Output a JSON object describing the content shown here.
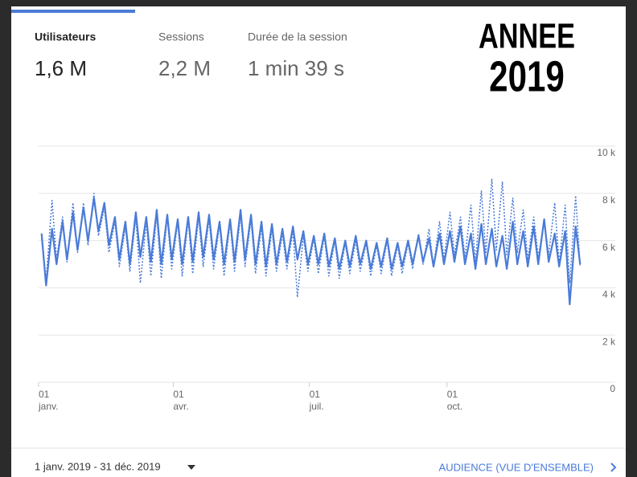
{
  "metrics": [
    {
      "label": "Utilisateurs",
      "value": "1,6 M"
    },
    {
      "label": "Sessions",
      "value": "2,2 M"
    },
    {
      "label": "Durée de la session",
      "value": "1 min 39 s"
    }
  ],
  "badge": {
    "line1": "ANNEE",
    "line2": "2019"
  },
  "chart_data": {
    "type": "line",
    "x": [
      2,
      5,
      9,
      12,
      16,
      19,
      23,
      26,
      30,
      33,
      37,
      40,
      44,
      47,
      51,
      54,
      58,
      61,
      65,
      68,
      72,
      75,
      79,
      82,
      86,
      89,
      93,
      96,
      100,
      103,
      107,
      110,
      114,
      117,
      121,
      124,
      128,
      131,
      135,
      138,
      142,
      145,
      149,
      152,
      156,
      159,
      163,
      166,
      170,
      173,
      177,
      180,
      184,
      187,
      191,
      194,
      198,
      201,
      205,
      208,
      212,
      215,
      219,
      222,
      226,
      229,
      233,
      236,
      240,
      243,
      247,
      250,
      254,
      257,
      261,
      264,
      268,
      271,
      275,
      278,
      282,
      285,
      289,
      292,
      296,
      299,
      303,
      306,
      310,
      313,
      317,
      320,
      324,
      327,
      331,
      334,
      338,
      341,
      345,
      348,
      352,
      355,
      359,
      362
    ],
    "series": [
      {
        "color": "#4a7bd8",
        "dash": "solid",
        "values": [
          6300,
          4100,
          6500,
          5000,
          6800,
          5200,
          7200,
          5600,
          7400,
          6000,
          7800,
          6400,
          7600,
          5800,
          7000,
          5200,
          6800,
          5000,
          7200,
          5300,
          7000,
          5100,
          7300,
          5000,
          7100,
          5200,
          6900,
          5000,
          7000,
          5100,
          7200,
          5300,
          7100,
          5200,
          6800,
          5000,
          6900,
          5100,
          7300,
          5200,
          7100,
          5000,
          6800,
          4900,
          6700,
          5000,
          6500,
          5100,
          6600,
          5200,
          6400,
          5000,
          6200,
          5000,
          6300,
          4900,
          6100,
          4800,
          6000,
          4900,
          6200,
          5000,
          6000,
          4800,
          5900,
          4900,
          6100,
          4800,
          5900,
          4900,
          6000,
          5000,
          6200,
          5100,
          6100,
          4900,
          6300,
          5000,
          6400,
          5100,
          6600,
          5000,
          6300,
          4800,
          6700,
          5000,
          6500,
          4900,
          6200,
          4800,
          6800,
          5000,
          6400,
          4900,
          6600,
          5000,
          6900,
          5100,
          6300,
          4900,
          6400,
          3300,
          6600,
          5000
        ]
      },
      {
        "color": "#4a7bd8",
        "dash": "dotted",
        "values": [
          6100,
          4300,
          7700,
          5200,
          7000,
          5100,
          7600,
          5500,
          7600,
          5800,
          8000,
          6200,
          7400,
          5500,
          6800,
          4900,
          6600,
          4700,
          7000,
          4200,
          6800,
          4500,
          7100,
          4400,
          7000,
          4800,
          6800,
          4500,
          6900,
          4600,
          7000,
          4900,
          6900,
          4800,
          6700,
          4500,
          6800,
          4700,
          7100,
          4900,
          6900,
          4600,
          6600,
          4500,
          6500,
          4700,
          6300,
          4800,
          6400,
          3600,
          6200,
          4700,
          6100,
          4600,
          6200,
          4500,
          6000,
          4400,
          5900,
          4600,
          6000,
          4700,
          5900,
          4500,
          5800,
          4600,
          6000,
          4500,
          5800,
          4600,
          5900,
          4800,
          6300,
          5000,
          6500,
          4900,
          6800,
          5200,
          7200,
          5400,
          7000,
          5300,
          7500,
          5100,
          8100,
          5500,
          8600,
          5600,
          8500,
          5400,
          7800,
          5500,
          7300,
          5200,
          7000,
          5300,
          6800,
          5400,
          7600,
          5000,
          7500,
          4200,
          7900,
          4900
        ]
      }
    ],
    "xlim": [
      0,
      364
    ],
    "xticks": [
      {
        "value": 0,
        "label": "01 janv."
      },
      {
        "value": 90,
        "label": "01 avr."
      },
      {
        "value": 181,
        "label": "01 juil."
      },
      {
        "value": 273,
        "label": "01 oct."
      }
    ],
    "ylim": [
      0,
      10000
    ],
    "yticks": [
      0,
      {
        "value": 2000,
        "label": "2 k"
      },
      {
        "value": 4000,
        "label": "4 k"
      },
      {
        "value": 6000,
        "label": "6 k"
      },
      {
        "value": 8000,
        "label": "8 k"
      },
      {
        "value": 10000,
        "label": "10 k"
      }
    ],
    "grid": true
  },
  "footer": {
    "date_range": "1 janv. 2019 - 31 déc. 2019",
    "link": "AUDIENCE (VUE D'ENSEMBLE)"
  }
}
